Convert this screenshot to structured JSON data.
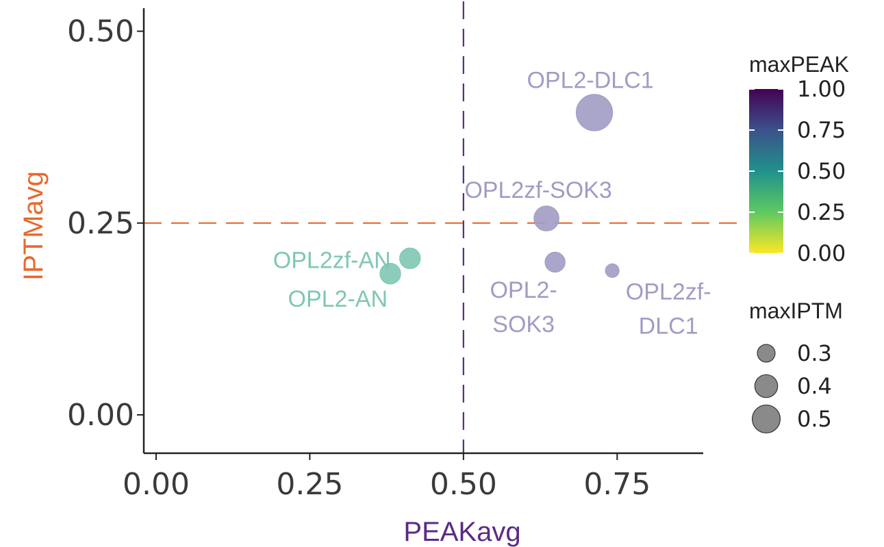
{
  "chart_data": {
    "type": "scatter",
    "xlabel": "PEAKavg",
    "ylabel": "IPTMavg",
    "xlim": [
      -0.02,
      0.89
    ],
    "ylim": [
      -0.05,
      0.53
    ],
    "xticks": [
      "0.00",
      "0.25",
      "0.50",
      "0.75"
    ],
    "yticks": [
      "0.00",
      "0.25",
      "0.50"
    ],
    "xtick_values": [
      0,
      0.25,
      0.5,
      0.75
    ],
    "ytick_values": [
      0,
      0.25,
      0.5
    ],
    "grid": false,
    "reference_lines": [
      {
        "orientation": "vertical",
        "value": 0.5,
        "color": "#5b2a86",
        "style": "dashed"
      },
      {
        "orientation": "horizontal",
        "value": 0.25,
        "color": "#e8682c",
        "style": "dashed"
      }
    ],
    "axis_title_colors": {
      "x": "#5b2a86",
      "y": "#e8682c"
    },
    "points": [
      {
        "label": "OPL2-DLC1",
        "x": 0.713,
        "y": 0.394,
        "maxIPTM": 0.52,
        "maxPEAK": 0.8,
        "color": "#a09cc4"
      },
      {
        "label": "OPL2zf-SOK3",
        "x": 0.635,
        "y": 0.256,
        "maxIPTM": 0.36,
        "maxPEAK": 0.8,
        "color": "#a09cc4"
      },
      {
        "label": "OPL2-SOK3",
        "x": 0.649,
        "y": 0.199,
        "maxIPTM": 0.29,
        "maxPEAK": 0.8,
        "color": "#a09cc4"
      },
      {
        "label": "OPL2zf-DLC1",
        "x": 0.742,
        "y": 0.188,
        "maxIPTM": 0.2,
        "maxPEAK": 0.8,
        "color": "#a09cc4"
      },
      {
        "label": "OPL2zf-AN",
        "x": 0.413,
        "y": 0.204,
        "maxIPTM": 0.3,
        "maxPEAK": 0.52,
        "color": "#7fc7b3"
      },
      {
        "label": "OPL2-AN",
        "x": 0.381,
        "y": 0.184,
        "maxIPTM": 0.3,
        "maxPEAK": 0.52,
        "color": "#7fc7b3"
      }
    ],
    "legend": {
      "placement": "right",
      "color": {
        "title": "maxPEAK",
        "ticks": [
          "1.00",
          "0.75",
          "0.50",
          "0.25",
          "0.00"
        ],
        "tick_values": [
          1,
          0.75,
          0.5,
          0.25,
          0
        ],
        "colormap": "viridis"
      },
      "size": {
        "title": "maxIPTM",
        "entries": [
          "0.3",
          "0.4",
          "0.5"
        ],
        "entry_values": [
          0.3,
          0.4,
          0.5
        ]
      }
    }
  }
}
